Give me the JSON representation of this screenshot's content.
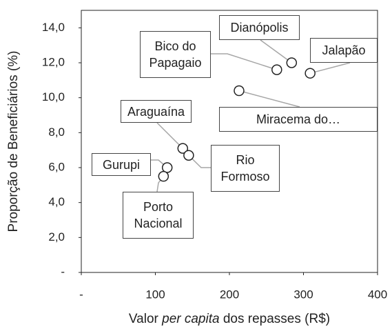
{
  "chart_data": {
    "type": "scatter",
    "x_label": [
      "Valor",
      "per capita",
      "dos repasses (R$)"
    ],
    "y_label": "Proporção de Beneficiários (%)",
    "xlim": [
      0,
      400
    ],
    "xticks": [
      {
        "value": 0,
        "label": "-"
      },
      100,
      200,
      300,
      400
    ],
    "ylim": [
      0,
      15
    ],
    "yticks": [
      {
        "value": 0,
        "label": "-"
      },
      {
        "value": 2,
        "label": "2,0"
      },
      {
        "value": 4,
        "label": "4,0"
      },
      {
        "value": 6,
        "label": "6,0"
      },
      {
        "value": 8,
        "label": "8,0"
      },
      {
        "value": 10,
        "label": "10,0"
      },
      {
        "value": 12,
        "label": "12,0"
      },
      {
        "value": 14,
        "label": "14,0"
      }
    ],
    "labels": [
      "Bico do Papagaio",
      "Dianópolis",
      "Jalapão",
      "Miracema do…",
      "Araguaína",
      "Rio Formoso",
      "Gurupi",
      "Porto Nacional"
    ],
    "x": [
      264,
      284,
      309,
      213,
      137,
      145,
      116,
      111
    ],
    "values": [
      11.6,
      12.0,
      11.4,
      10.4,
      7.1,
      6.7,
      6.0,
      5.5
    ]
  }
}
